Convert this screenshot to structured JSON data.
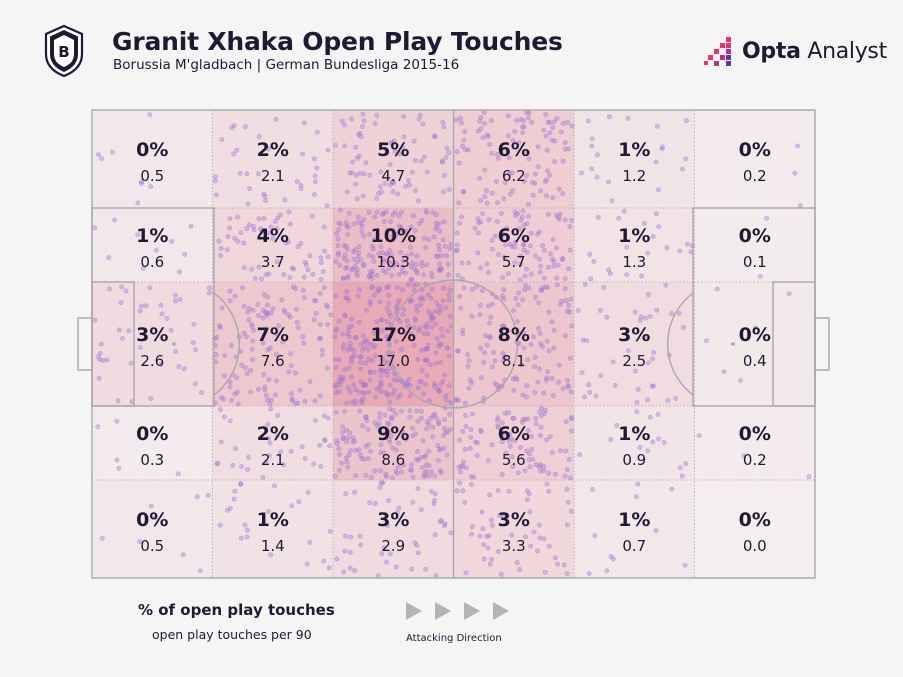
{
  "header": {
    "title": "Granit Xhaka Open Play Touches",
    "subtitle": "Borussia M'gladbach | German Bundesliga 2015-16",
    "brand_bold": "Opta",
    "brand_light": " Analyst",
    "crest_icon": "club-crest-icon",
    "brand_icon": "opta-logo-icon"
  },
  "legend": {
    "title": "% of open play touches",
    "subtitle": "open play touches per 90",
    "direction_label": "Attacking Direction"
  },
  "colors": {
    "background": "#f5f5f6",
    "pitch_lines": "#a9a6ad",
    "heat": "#d0203e",
    "dots": "#a57cd6",
    "text": "#1e1a33",
    "brand_accent": "#e8336e"
  },
  "chart_data": {
    "type": "heatmap",
    "columns": 6,
    "rows": 5,
    "cells": [
      [
        {
          "pct": "0%",
          "per90": "0.5"
        },
        {
          "pct": "2%",
          "per90": "2.1"
        },
        {
          "pct": "5%",
          "per90": "4.7"
        },
        {
          "pct": "6%",
          "per90": "6.2"
        },
        {
          "pct": "1%",
          "per90": "1.2"
        },
        {
          "pct": "0%",
          "per90": "0.2"
        }
      ],
      [
        {
          "pct": "1%",
          "per90": "0.6"
        },
        {
          "pct": "4%",
          "per90": "3.7"
        },
        {
          "pct": "10%",
          "per90": "10.3"
        },
        {
          "pct": "6%",
          "per90": "5.7"
        },
        {
          "pct": "1%",
          "per90": "1.3"
        },
        {
          "pct": "0%",
          "per90": "0.1"
        }
      ],
      [
        {
          "pct": "3%",
          "per90": "2.6"
        },
        {
          "pct": "7%",
          "per90": "7.6"
        },
        {
          "pct": "17%",
          "per90": "17.0"
        },
        {
          "pct": "8%",
          "per90": "8.1"
        },
        {
          "pct": "3%",
          "per90": "2.5"
        },
        {
          "pct": "0%",
          "per90": "0.4"
        }
      ],
      [
        {
          "pct": "0%",
          "per90": "0.3"
        },
        {
          "pct": "2%",
          "per90": "2.1"
        },
        {
          "pct": "9%",
          "per90": "8.6"
        },
        {
          "pct": "6%",
          "per90": "5.6"
        },
        {
          "pct": "1%",
          "per90": "0.9"
        },
        {
          "pct": "0%",
          "per90": "0.2"
        }
      ],
      [
        {
          "pct": "0%",
          "per90": "0.5"
        },
        {
          "pct": "1%",
          "per90": "1.4"
        },
        {
          "pct": "3%",
          "per90": "2.9"
        },
        {
          "pct": "3%",
          "per90": "3.3"
        },
        {
          "pct": "1%",
          "per90": "0.7"
        },
        {
          "pct": "0%",
          "per90": "0.0"
        }
      ]
    ],
    "grid": true,
    "attacking_direction": "left-to-right"
  }
}
